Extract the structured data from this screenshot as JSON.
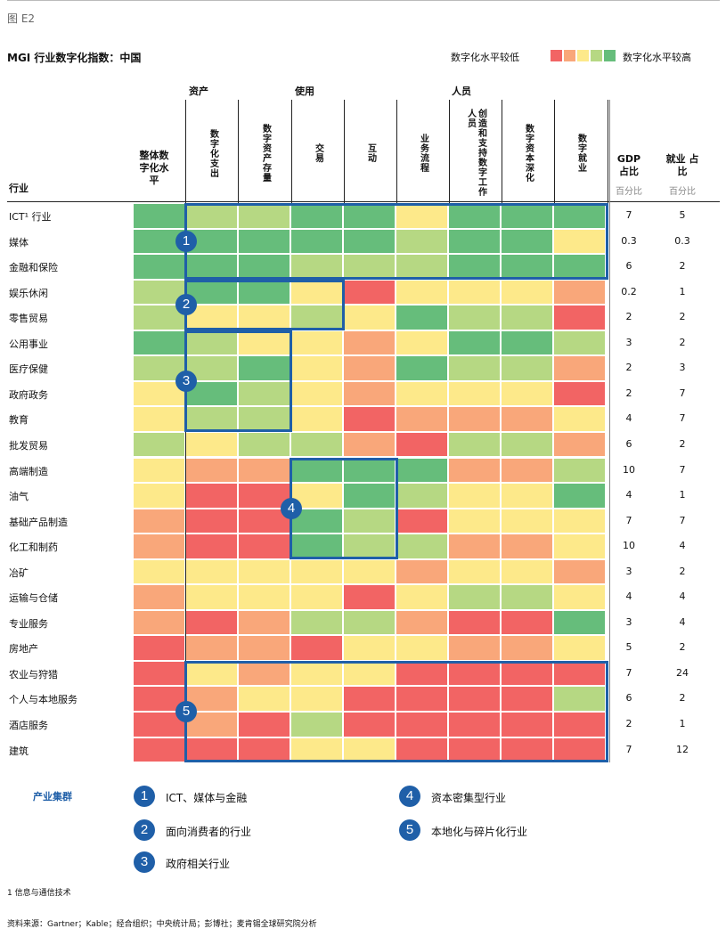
{
  "figure_label": "图 E2",
  "title": "MGI 行业数字化指数：中国",
  "legend": {
    "low": "数字化水平较低",
    "high": "数字化水平较高",
    "colors": [
      "#f26464",
      "#f9a77a",
      "#fde98a",
      "#b6d883",
      "#66bd7b"
    ]
  },
  "chart_data": {
    "type": "heatmap",
    "title": "MGI 行业数字化指数：中国",
    "scale": "1 = 数字化水平较低 … 5 = 数字化水平较高",
    "groups": [
      {
        "label": "资产",
        "columns": [
          1,
          2
        ]
      },
      {
        "label": "使用",
        "columns": [
          3,
          4,
          5
        ]
      },
      {
        "label": "人员",
        "columns": [
          6,
          7,
          8
        ]
      }
    ],
    "overall_header": "整体数字化水平",
    "columns": [
      "数字化支出",
      "数字资产存量",
      "交易",
      "互动",
      "业务流程",
      "创造和支持数字工作人员",
      "数字资本深化",
      "数字就业"
    ],
    "row_header": "行业",
    "gdp_header": "GDP 占比",
    "emp_header": "就业 占比",
    "unit": "百分比",
    "rows": [
      {
        "industry": "ICT¹ 行业",
        "overall": 5,
        "scores": [
          4,
          4,
          5,
          5,
          3,
          5,
          5,
          5
        ],
        "gdp": "7",
        "emp": "5"
      },
      {
        "industry": "媒体",
        "overall": 5,
        "scores": [
          5,
          5,
          5,
          5,
          4,
          5,
          5,
          3
        ],
        "gdp": "0.3",
        "emp": "0.3"
      },
      {
        "industry": "金融和保险",
        "overall": 5,
        "scores": [
          5,
          5,
          4,
          4,
          4,
          5,
          5,
          5
        ],
        "gdp": "6",
        "emp": "2"
      },
      {
        "industry": "娱乐休闲",
        "overall": 4,
        "scores": [
          5,
          5,
          3,
          1,
          3,
          3,
          3,
          2
        ],
        "gdp": "0.2",
        "emp": "1"
      },
      {
        "industry": "零售贸易",
        "overall": 4,
        "scores": [
          3,
          3,
          4,
          3,
          5,
          4,
          4,
          1
        ],
        "gdp": "2",
        "emp": "2"
      },
      {
        "industry": "公用事业",
        "overall": 5,
        "scores": [
          4,
          3,
          3,
          2,
          3,
          5,
          5,
          4
        ],
        "gdp": "3",
        "emp": "2"
      },
      {
        "industry": "医疗保健",
        "overall": 4,
        "scores": [
          4,
          5,
          3,
          2,
          5,
          4,
          4,
          2
        ],
        "gdp": "2",
        "emp": "3"
      },
      {
        "industry": "政府政务",
        "overall": 3,
        "scores": [
          5,
          4,
          3,
          2,
          3,
          3,
          3,
          1
        ],
        "gdp": "2",
        "emp": "7"
      },
      {
        "industry": "教育",
        "overall": 3,
        "scores": [
          4,
          4,
          3,
          1,
          2,
          2,
          2,
          3
        ],
        "gdp": "4",
        "emp": "7"
      },
      {
        "industry": "批发贸易",
        "overall": 4,
        "scores": [
          3,
          4,
          4,
          2,
          1,
          4,
          4,
          2
        ],
        "gdp": "6",
        "emp": "2"
      },
      {
        "industry": "高端制造",
        "overall": 3,
        "scores": [
          2,
          2,
          5,
          5,
          5,
          2,
          2,
          4
        ],
        "gdp": "10",
        "emp": "7"
      },
      {
        "industry": "油气",
        "overall": 3,
        "scores": [
          1,
          1,
          3,
          5,
          4,
          3,
          3,
          5
        ],
        "gdp": "4",
        "emp": "1"
      },
      {
        "industry": "基础产品制造",
        "overall": 2,
        "scores": [
          1,
          1,
          5,
          4,
          1,
          3,
          3,
          3
        ],
        "gdp": "7",
        "emp": "7"
      },
      {
        "industry": "化工和制药",
        "overall": 2,
        "scores": [
          1,
          1,
          5,
          4,
          4,
          2,
          2,
          3
        ],
        "gdp": "10",
        "emp": "4"
      },
      {
        "industry": "冶矿",
        "overall": 3,
        "scores": [
          3,
          3,
          3,
          3,
          2,
          3,
          3,
          2
        ],
        "gdp": "3",
        "emp": "2"
      },
      {
        "industry": "运输与仓储",
        "overall": 2,
        "scores": [
          3,
          3,
          3,
          1,
          3,
          4,
          4,
          3
        ],
        "gdp": "4",
        "emp": "4"
      },
      {
        "industry": "专业服务",
        "overall": 2,
        "scores": [
          1,
          2,
          4,
          4,
          2,
          1,
          1,
          5
        ],
        "gdp": "3",
        "emp": "4"
      },
      {
        "industry": "房地产",
        "overall": 1,
        "scores": [
          2,
          2,
          1,
          3,
          3,
          2,
          2,
          3
        ],
        "gdp": "5",
        "emp": "2"
      },
      {
        "industry": "农业与狩猎",
        "overall": 1,
        "scores": [
          3,
          2,
          3,
          3,
          1,
          1,
          1,
          1
        ],
        "gdp": "7",
        "emp": "24"
      },
      {
        "industry": "个人与本地服务",
        "overall": 1,
        "scores": [
          2,
          3,
          3,
          1,
          1,
          1,
          1,
          4
        ],
        "gdp": "6",
        "emp": "2"
      },
      {
        "industry": "酒店服务",
        "overall": 1,
        "scores": [
          2,
          1,
          4,
          1,
          1,
          1,
          1,
          1
        ],
        "gdp": "2",
        "emp": "1"
      },
      {
        "industry": "建筑",
        "overall": 1,
        "scores": [
          1,
          1,
          3,
          3,
          1,
          1,
          1,
          1
        ],
        "gdp": "7",
        "emp": "12"
      }
    ],
    "clusters": [
      {
        "id": "1",
        "label": "ICT、媒体与金融"
      },
      {
        "id": "2",
        "label": "面向消费者的行业"
      },
      {
        "id": "3",
        "label": "政府相关行业"
      },
      {
        "id": "4",
        "label": "资本密集型行业"
      },
      {
        "id": "5",
        "label": "本地化与碎片化行业"
      }
    ],
    "clusters_title": "产业集群"
  },
  "footnote": "1  信息与通信技术",
  "source": "资料来源：Gartner；Kable；经合组织；中央统计局；彭博社；麦肯锡全球研究院分析"
}
